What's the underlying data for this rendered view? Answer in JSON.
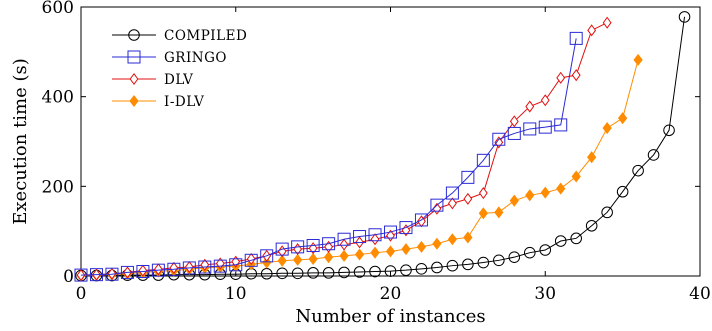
{
  "chart_data": {
    "type": "line",
    "title": "",
    "xlabel": "Number of instances",
    "ylabel": "Execution time (s)",
    "xlim": [
      0,
      40
    ],
    "ylim": [
      0,
      600
    ],
    "xticks": [
      0,
      10,
      20,
      30,
      40
    ],
    "yticks": [
      0,
      200,
      400,
      600
    ],
    "legend_position": "top-left",
    "grid": false,
    "series": [
      {
        "name": "COMPILED",
        "color": "#000000",
        "marker": "circle",
        "x": [
          0,
          1,
          2,
          3,
          4,
          5,
          6,
          7,
          8,
          9,
          10,
          11,
          12,
          13,
          14,
          15,
          16,
          17,
          18,
          19,
          20,
          21,
          22,
          23,
          24,
          25,
          26,
          27,
          28,
          29,
          30,
          31,
          32,
          33,
          34,
          35,
          36,
          37,
          38,
          39
        ],
        "y": [
          1,
          1,
          1,
          2,
          2,
          2,
          3,
          3,
          3,
          4,
          4,
          5,
          5,
          6,
          6,
          7,
          7,
          8,
          9,
          10,
          11,
          13,
          16,
          19,
          23,
          26,
          30,
          35,
          42,
          52,
          58,
          78,
          84,
          112,
          142,
          188,
          235,
          270,
          325,
          578
        ]
      },
      {
        "name": "GRINGO",
        "color": "#2a2ad6",
        "marker": "square",
        "x": [
          0,
          1,
          2,
          3,
          4,
          5,
          6,
          7,
          8,
          9,
          10,
          11,
          12,
          13,
          14,
          15,
          16,
          17,
          18,
          19,
          20,
          21,
          22,
          23,
          24,
          25,
          26,
          27,
          28,
          29,
          30,
          31,
          32
        ],
        "y": [
          2,
          3,
          4,
          8,
          10,
          13,
          15,
          18,
          20,
          22,
          25,
          35,
          45,
          60,
          65,
          68,
          72,
          82,
          88,
          92,
          98,
          108,
          125,
          158,
          185,
          220,
          258,
          305,
          318,
          328,
          332,
          337,
          530
        ]
      },
      {
        "name": "DLV",
        "color": "#e01010",
        "marker": "diamond",
        "x": [
          0,
          1,
          2,
          3,
          4,
          5,
          6,
          7,
          8,
          9,
          10,
          11,
          12,
          13,
          14,
          15,
          16,
          17,
          18,
          19,
          20,
          21,
          22,
          23,
          24,
          25,
          26,
          27,
          28,
          29,
          30,
          31,
          32,
          33,
          34
        ],
        "y": [
          2,
          3,
          5,
          8,
          12,
          15,
          18,
          20,
          25,
          28,
          32,
          38,
          45,
          55,
          60,
          62,
          65,
          70,
          75,
          82,
          90,
          102,
          122,
          150,
          162,
          172,
          185,
          298,
          345,
          378,
          392,
          442,
          448,
          548,
          565
        ]
      },
      {
        "name": "I-DLV",
        "color": "#ff8c00",
        "marker": "filled-diamond",
        "x": [
          0,
          1,
          2,
          3,
          4,
          5,
          6,
          7,
          8,
          9,
          10,
          11,
          12,
          13,
          14,
          15,
          16,
          17,
          18,
          19,
          20,
          21,
          22,
          23,
          24,
          25,
          26,
          27,
          28,
          29,
          30,
          31,
          32,
          33,
          34,
          35,
          36
        ],
        "y": [
          1,
          2,
          3,
          5,
          8,
          10,
          12,
          15,
          18,
          20,
          22,
          26,
          30,
          34,
          36,
          38,
          42,
          45,
          48,
          52,
          55,
          60,
          65,
          72,
          82,
          86,
          140,
          142,
          168,
          180,
          186,
          195,
          222,
          265,
          330,
          352,
          482
        ]
      }
    ]
  }
}
